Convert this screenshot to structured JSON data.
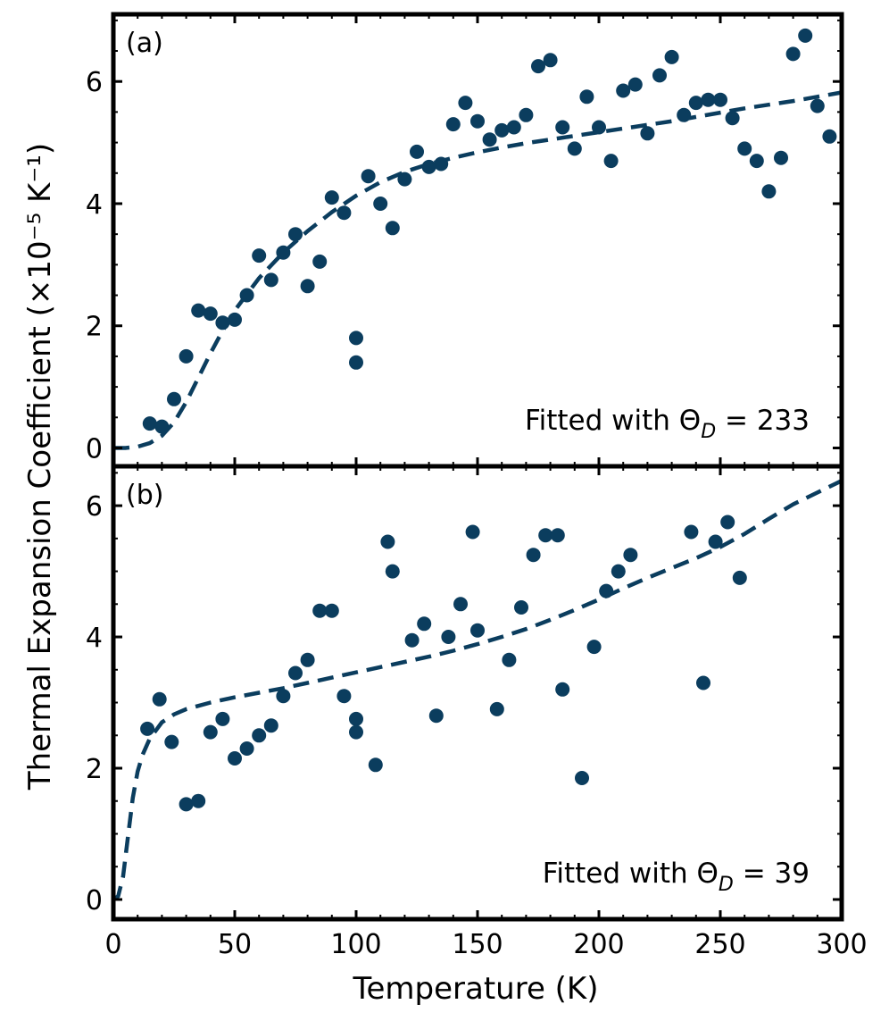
{
  "chart_data": [
    {
      "type": "scatter",
      "panel_label": "(a)",
      "annotation_prefix": "Fitted with Θ",
      "annotation_sub": "D",
      "annotation_suffix": " = 233",
      "theta_d": 233,
      "xlabel": "Temperature (K)",
      "ylabel": "Thermal Expansion Coefficient (×10⁻⁵ K⁻¹)",
      "xlim": [
        0,
        300
      ],
      "ylim": [
        -0.3,
        7.1
      ],
      "xticks": [
        0,
        50,
        100,
        150,
        200,
        250,
        300
      ],
      "yticks": [
        0,
        2,
        4,
        6
      ],
      "marker_color": "#0b3d5e",
      "series": [
        {
          "name": "data",
          "x": [
            15,
            20,
            25,
            30,
            35,
            40,
            45,
            50,
            55,
            60,
            65,
            70,
            75,
            80,
            85,
            90,
            95,
            100,
            100,
            105,
            110,
            115,
            120,
            125,
            130,
            135,
            140,
            145,
            150,
            155,
            160,
            165,
            170,
            175,
            180,
            185,
            190,
            195,
            200,
            205,
            210,
            215,
            220,
            225,
            230,
            235,
            240,
            245,
            250,
            255,
            260,
            265,
            270,
            275,
            280,
            285,
            290,
            295
          ],
          "y": [
            0.4,
            0.35,
            0.8,
            1.5,
            2.25,
            2.2,
            2.05,
            2.1,
            2.5,
            3.15,
            2.75,
            3.2,
            3.5,
            2.65,
            3.05,
            4.1,
            3.85,
            1.8,
            1.4,
            4.45,
            4.0,
            3.6,
            4.4,
            4.85,
            4.6,
            4.65,
            5.3,
            5.65,
            5.35,
            5.05,
            5.2,
            5.25,
            5.45,
            6.25,
            6.35,
            5.25,
            4.9,
            5.75,
            5.25,
            4.7,
            5.85,
            5.95,
            5.15,
            6.1,
            6.4,
            5.45,
            5.65,
            5.7,
            5.7,
            5.4,
            4.9,
            4.7,
            4.2,
            4.75,
            6.45,
            6.75,
            5.6,
            5.1
          ]
        },
        {
          "name": "fit",
          "style": "dashed",
          "x": [
            0,
            5,
            10,
            15,
            20,
            25,
            30,
            35,
            40,
            45,
            50,
            60,
            70,
            80,
            90,
            100,
            110,
            120,
            130,
            140,
            150,
            160,
            170,
            180,
            190,
            200,
            210,
            220,
            230,
            240,
            250,
            260,
            270,
            280,
            290,
            300
          ],
          "y": [
            0.0,
            0.0,
            0.02,
            0.08,
            0.2,
            0.42,
            0.75,
            1.15,
            1.55,
            1.92,
            2.25,
            2.78,
            3.2,
            3.55,
            3.86,
            4.13,
            4.35,
            4.52,
            4.65,
            4.75,
            4.84,
            4.92,
            4.99,
            5.05,
            5.11,
            5.17,
            5.23,
            5.29,
            5.35,
            5.42,
            5.49,
            5.56,
            5.62,
            5.68,
            5.75,
            5.82
          ]
        }
      ]
    },
    {
      "type": "scatter",
      "panel_label": "(b)",
      "annotation_prefix": "Fitted with Θ",
      "annotation_sub": "D",
      "annotation_suffix": " = 39",
      "theta_d": 39,
      "xlabel": "Temperature (K)",
      "ylabel": "Thermal Expansion Coefficient (×10⁻⁵ K⁻¹)",
      "xlim": [
        0,
        300
      ],
      "ylim": [
        -0.3,
        6.6
      ],
      "xticks": [
        0,
        50,
        100,
        150,
        200,
        250,
        300
      ],
      "yticks": [
        0,
        2,
        4,
        6
      ],
      "marker_color": "#0b3d5e",
      "series": [
        {
          "name": "data",
          "x": [
            14,
            19,
            24,
            30,
            35,
            40,
            45,
            50,
            55,
            60,
            65,
            70,
            75,
            80,
            85,
            90,
            95,
            100,
            100,
            108,
            113,
            115,
            123,
            128,
            133,
            138,
            143,
            148,
            150,
            158,
            163,
            168,
            173,
            178,
            183,
            185,
            193,
            198,
            203,
            208,
            213,
            238,
            243,
            248,
            253,
            258
          ],
          "y": [
            2.6,
            3.05,
            2.4,
            1.45,
            1.5,
            2.55,
            2.75,
            2.15,
            2.3,
            2.5,
            2.65,
            3.1,
            3.45,
            3.65,
            4.4,
            4.4,
            3.1,
            2.75,
            2.55,
            2.05,
            5.45,
            5.0,
            3.95,
            4.2,
            2.8,
            4.0,
            4.5,
            5.6,
            4.1,
            2.9,
            3.65,
            4.45,
            5.25,
            5.55,
            5.55,
            3.2,
            1.85,
            3.85,
            4.7,
            5.0,
            5.25,
            5.6,
            3.3,
            5.45,
            5.75,
            4.9
          ]
        },
        {
          "name": "fit",
          "style": "dashed",
          "x": [
            0,
            2,
            4,
            6,
            8,
            10,
            12,
            15,
            20,
            25,
            30,
            40,
            50,
            60,
            70,
            80,
            90,
            100,
            110,
            120,
            130,
            140,
            150,
            160,
            170,
            180,
            190,
            200,
            210,
            220,
            230,
            240,
            250,
            260,
            270,
            280,
            290,
            300
          ],
          "y": [
            0.0,
            0.05,
            0.35,
            0.95,
            1.55,
            1.95,
            2.2,
            2.45,
            2.7,
            2.82,
            2.9,
            3.0,
            3.08,
            3.15,
            3.22,
            3.3,
            3.38,
            3.46,
            3.54,
            3.62,
            3.7,
            3.79,
            3.89,
            4.0,
            4.12,
            4.26,
            4.41,
            4.57,
            4.74,
            4.9,
            5.05,
            5.2,
            5.37,
            5.57,
            5.8,
            6.02,
            6.2,
            6.38
          ]
        }
      ]
    }
  ]
}
